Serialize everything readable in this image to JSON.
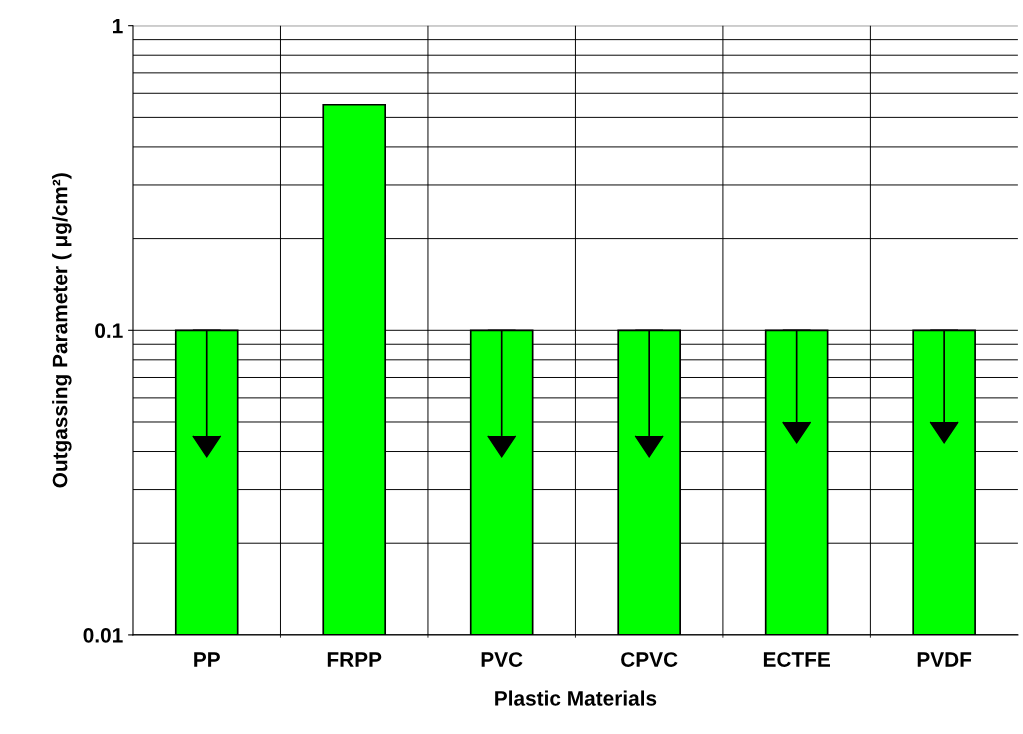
{
  "chart_data": {
    "type": "bar",
    "xlabel": "Plastic Materials",
    "ylabel": "Outgassing Parameter ( μg/cm²)",
    "categories": [
      "PP",
      "FRPP",
      "PVC",
      "CPVC",
      "ECTFE",
      "PVDF"
    ],
    "values": [
      0.1,
      0.55,
      0.1,
      0.1,
      0.1,
      0.1
    ],
    "errors": [
      [
        0.045,
        0.1
      ],
      null,
      [
        0.045,
        0.1
      ],
      [
        0.045,
        0.1
      ],
      [
        0.05,
        0.1
      ],
      [
        0.05,
        0.1
      ]
    ],
    "color": "#00ff00",
    "log": true,
    "ylim": [
      0.01,
      1
    ],
    "yticks": [
      0.01,
      0.1,
      1
    ],
    "grid": true,
    "legend": false
  }
}
